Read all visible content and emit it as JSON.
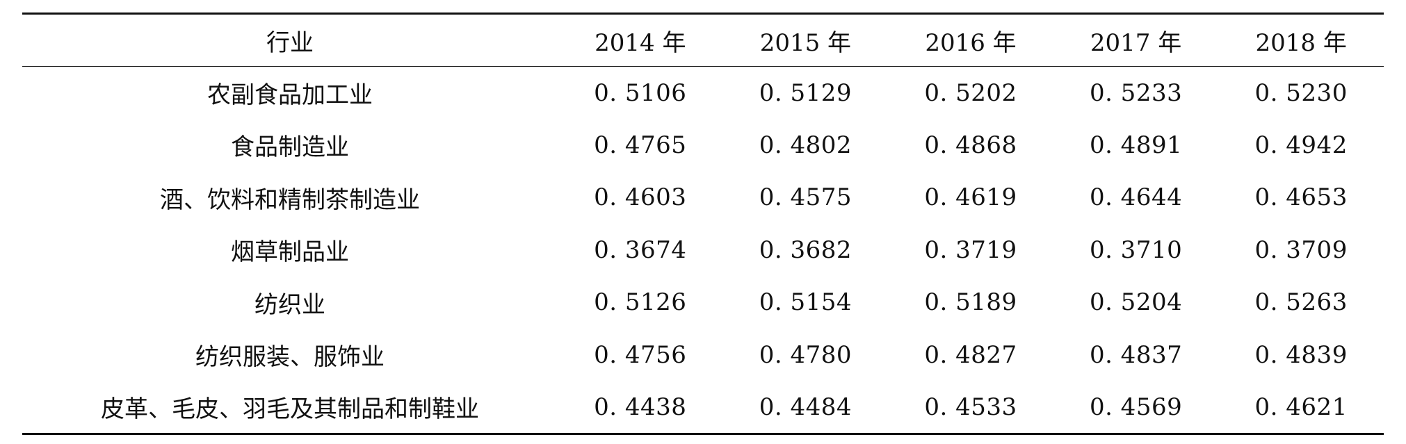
{
  "table": {
    "columns": [
      "行业",
      "2014 年",
      "2015 年",
      "2016 年",
      "2017 年",
      "2018 年"
    ],
    "rows": [
      {
        "industry": "农副食品加工业",
        "values": [
          "0. 5106",
          "0. 5129",
          "0. 5202",
          "0. 5233",
          "0. 5230"
        ]
      },
      {
        "industry": "食品制造业",
        "values": [
          "0. 4765",
          "0. 4802",
          "0. 4868",
          "0. 4891",
          "0. 4942"
        ]
      },
      {
        "industry": "酒、饮料和精制茶制造业",
        "values": [
          "0. 4603",
          "0. 4575",
          "0. 4619",
          "0. 4644",
          "0. 4653"
        ]
      },
      {
        "industry": "烟草制品业",
        "values": [
          "0. 3674",
          "0. 3682",
          "0. 3719",
          "0. 3710",
          "0. 3709"
        ]
      },
      {
        "industry": "纺织业",
        "values": [
          "0. 5126",
          "0. 5154",
          "0. 5189",
          "0. 5204",
          "0. 5263"
        ]
      },
      {
        "industry": "纺织服装、服饰业",
        "values": [
          "0. 4756",
          "0. 4780",
          "0. 4827",
          "0. 4837",
          "0. 4839"
        ]
      },
      {
        "industry": "皮革、毛皮、羽毛及其制品和制鞋业",
        "values": [
          "0. 4438",
          "0. 4484",
          "0. 4533",
          "0. 4569",
          "0. 4621"
        ]
      }
    ]
  }
}
